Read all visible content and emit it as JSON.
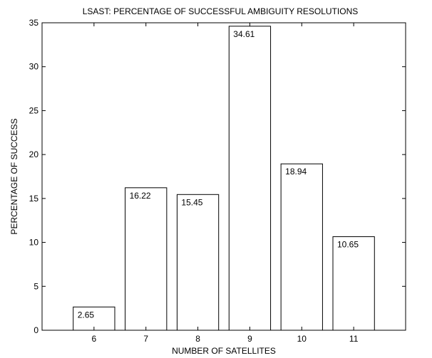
{
  "chart_data": {
    "type": "bar",
    "title": "LSAST: PERCENTAGE OF SUCCESSFUL AMBIGUITY RESOLUTIONS",
    "xlabel": "NUMBER OF SATELLITES",
    "ylabel": "PERCENTAGE OF SUCCESS",
    "categories": [
      "6",
      "7",
      "8",
      "9",
      "10",
      "11"
    ],
    "values": [
      2.65,
      16.22,
      15.45,
      34.61,
      18.94,
      10.65
    ],
    "value_labels": [
      "2.65",
      "16.22",
      "15.45",
      "34.61",
      "18.94",
      "10.65"
    ],
    "x_range": [
      5,
      12
    ],
    "ylim": [
      0,
      35
    ],
    "yticks": [
      0,
      5,
      10,
      15,
      20,
      25,
      30,
      35
    ],
    "ytick_labels": [
      "0",
      "5",
      "10",
      "15",
      "20",
      "25",
      "30",
      "35"
    ],
    "grid": false,
    "bar_fill": "#ffffff",
    "bar_stroke": "#000000"
  }
}
